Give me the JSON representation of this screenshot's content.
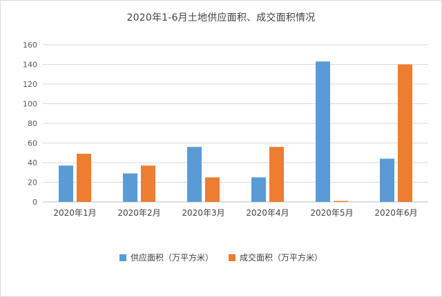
{
  "chart_data": {
    "type": "bar",
    "title": "2020年1-6月土地供应面积、成交面积情况",
    "categories": [
      "2020年1月",
      "2020年2月",
      "2020年3月",
      "2020年4月",
      "2020年5月",
      "2020年6月"
    ],
    "series": [
      {
        "name": "供应面积（万平方米）",
        "color": "#5b9bd5",
        "values": [
          37,
          29,
          56,
          25,
          143,
          44
        ]
      },
      {
        "name": "成交面积（万平方米）",
        "color": "#ed7d31",
        "values": [
          49,
          37,
          25,
          56,
          1,
          140
        ]
      }
    ],
    "ylim": [
      0,
      160
    ],
    "yticks": [
      0,
      20,
      40,
      60,
      80,
      100,
      120,
      140,
      160
    ],
    "grid": true,
    "legend_position": "bottom"
  }
}
